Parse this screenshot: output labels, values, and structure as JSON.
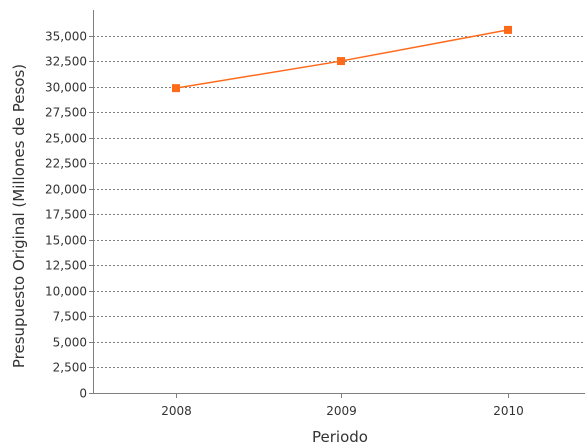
{
  "chart_data": {
    "type": "line",
    "title": "",
    "xlabel": "Periodo",
    "ylabel": "Presupuesto Original (Millones de Pesos)",
    "categories": [
      "2008",
      "2009",
      "2010"
    ],
    "series": [
      {
        "values": [
          29850,
          32500,
          35550
        ],
        "color": "#ff6a1a",
        "marker": "square"
      }
    ],
    "ylim": [
      0,
      37500
    ],
    "yticks": [
      0,
      2500,
      5000,
      7500,
      10000,
      12500,
      15000,
      17500,
      20000,
      22500,
      25000,
      27500,
      30000,
      32500,
      35000
    ],
    "ytick_labels": [
      "0",
      "2,500",
      "5,000",
      "7,500",
      "10,000",
      "12,500",
      "15,000",
      "17,500",
      "20,000",
      "22,500",
      "25,000",
      "27,500",
      "30,000",
      "32,500",
      "35,000"
    ],
    "grid": true,
    "grid_color": "#7f7f7f",
    "axis_color": "#7f7f7f",
    "text_color": "#333333",
    "legend": "none"
  }
}
